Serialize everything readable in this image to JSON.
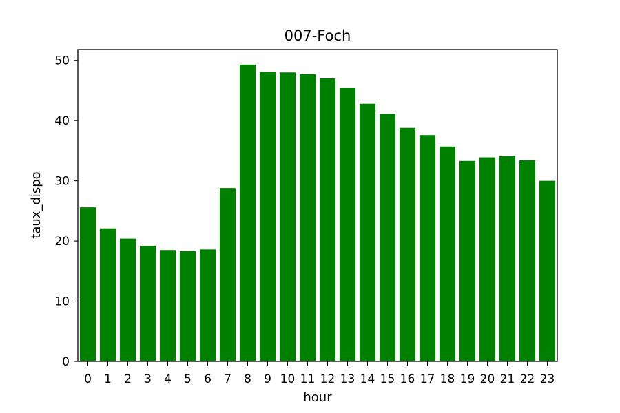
{
  "chart_data": {
    "type": "bar",
    "title": "007-Foch",
    "xlabel": "hour",
    "ylabel": "taux_dispo",
    "categories": [
      "0",
      "1",
      "2",
      "3",
      "4",
      "5",
      "6",
      "7",
      "8",
      "9",
      "10",
      "11",
      "12",
      "13",
      "14",
      "15",
      "16",
      "17",
      "18",
      "19",
      "20",
      "21",
      "22",
      "23"
    ],
    "values": [
      25.6,
      22.1,
      20.4,
      19.2,
      18.5,
      18.3,
      18.6,
      28.8,
      49.3,
      48.1,
      48.0,
      47.7,
      47.0,
      45.4,
      42.8,
      41.1,
      38.8,
      37.6,
      35.7,
      33.3,
      33.9,
      34.1,
      33.4,
      30.0
    ],
    "ylim": [
      0,
      51.8
    ],
    "yticks": [
      0,
      10,
      20,
      30,
      40,
      50
    ],
    "bar_color": "#008000",
    "grid": false,
    "legend": "none"
  }
}
